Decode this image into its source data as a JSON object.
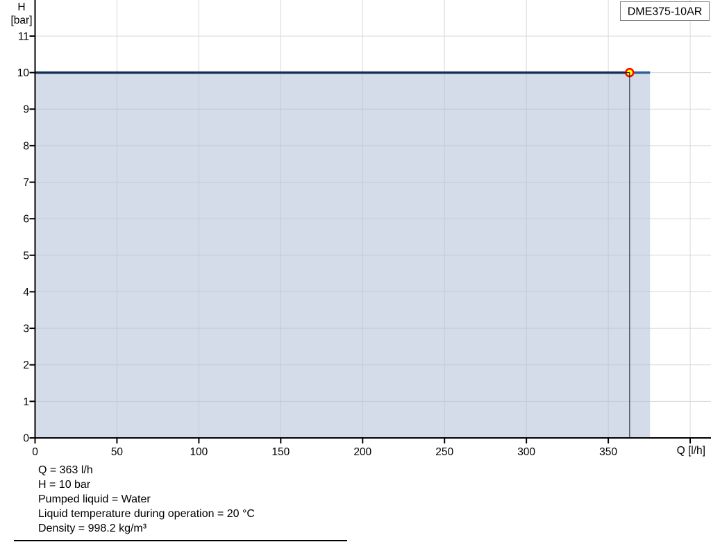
{
  "chart": {
    "model_label": "DME375-10AR",
    "y_axis_title_line1": "H",
    "y_axis_title_line2": "[bar]",
    "x_axis_title": "Q [l/h]"
  },
  "chart_data": {
    "type": "area",
    "title": "DME375-10AR",
    "xlabel": "Q [l/h]",
    "ylabel": "H [bar]",
    "xlim": [
      0,
      413
    ],
    "ylim": [
      0,
      12
    ],
    "x_ticks": [
      0,
      50,
      100,
      150,
      200,
      250,
      300,
      350
    ],
    "x_unlabeled_tick": 400,
    "y_ticks": [
      0,
      1,
      2,
      3,
      4,
      5,
      6,
      7,
      8,
      9,
      10,
      11
    ],
    "grid": true,
    "legend_position": "none",
    "series": [
      {
        "name": "max-pressure-curve",
        "x": [
          0,
          375.5
        ],
        "y": [
          10,
          10
        ],
        "fill_to_zero": true
      }
    ],
    "duty_point": {
      "x": 363,
      "y": 10
    }
  },
  "colors": {
    "curve_dark": "#132c52",
    "curve_light": "#2e5f92",
    "area_fill": "rgba(175,192,213,0.55)",
    "grid": "#d7d7d7",
    "duty_line": "#55616d",
    "marker_fill": "#ffff00",
    "marker_ring": "#ff0000",
    "axis": "#000000",
    "label_box_border": "#808080",
    "label_box_bg": "#ffffff"
  },
  "info": {
    "lines": [
      "Q = 363 l/h",
      "H = 10 bar",
      "Pumped liquid = Water",
      "Liquid temperature during operation = 20 °C",
      "Density = 998.2 kg/m³"
    ]
  }
}
